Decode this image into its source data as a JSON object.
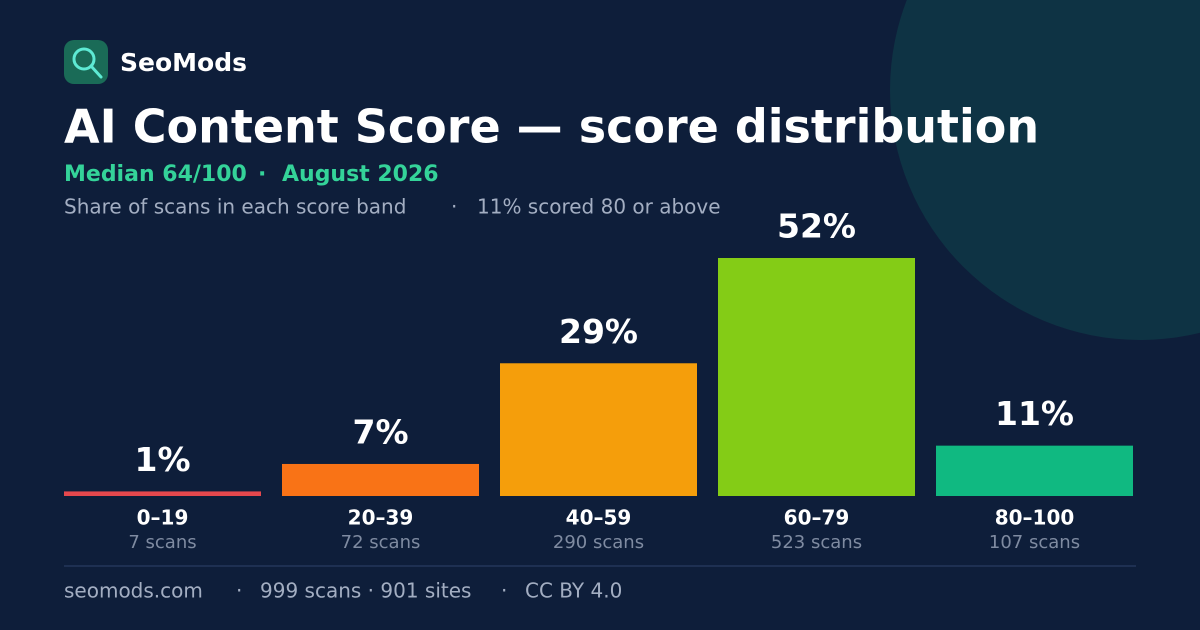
{
  "brand": "SeoMods",
  "chart_data": {
    "type": "bar",
    "title": "AI Content Score — score distribution",
    "median": "Median 64/100",
    "period": "August 2026",
    "description": "Share of scans in each score band",
    "note": "11% scored 80 or above",
    "categories": [
      "0–19",
      "20–39",
      "40–59",
      "60–79",
      "80–100"
    ],
    "values": [
      1,
      7,
      29,
      52,
      11
    ],
    "value_labels": [
      "1%",
      "7%",
      "29%",
      "52%",
      "11%"
    ],
    "scan_labels": [
      "7 scans",
      "72 scans",
      "290 scans",
      "523 scans",
      "107 scans"
    ],
    "colors": [
      "#e5484d",
      "#f97316",
      "#f59e0b",
      "#84cc16",
      "#10b981"
    ]
  },
  "footer": {
    "site": "seomods.com",
    "stats": "999 scans · 901 sites",
    "license": "CC BY 4.0"
  }
}
